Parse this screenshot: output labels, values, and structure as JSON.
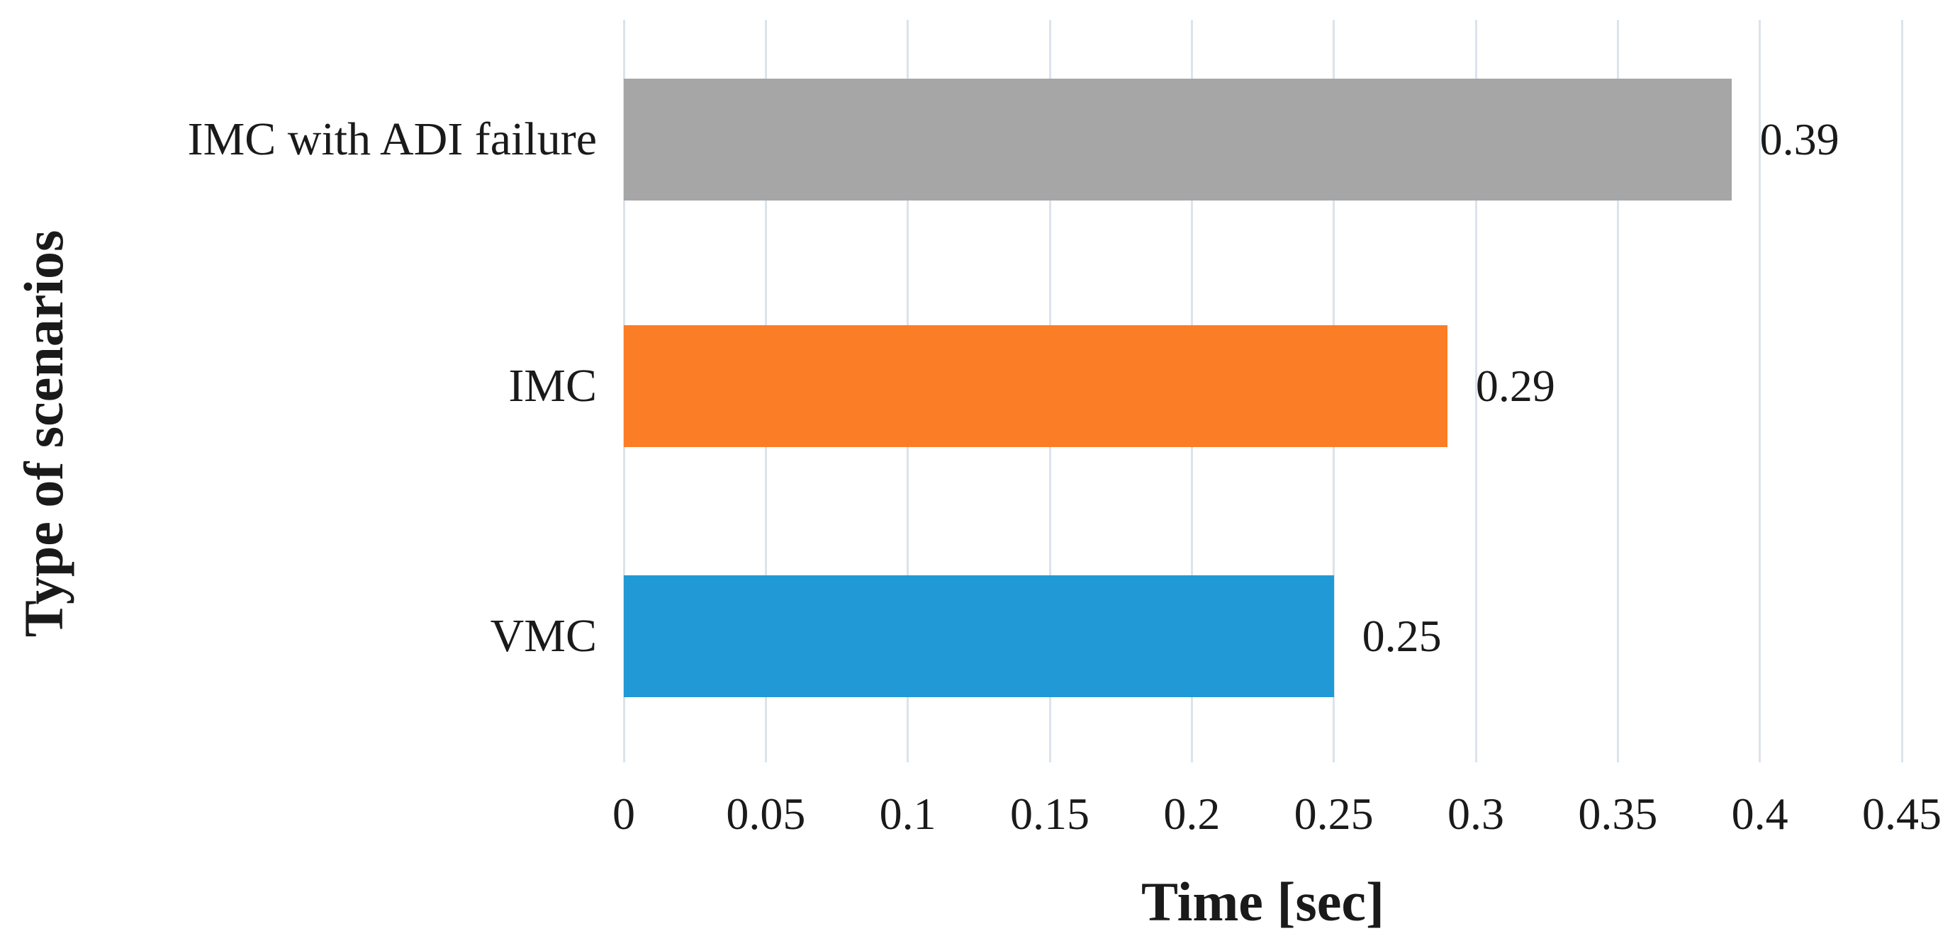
{
  "figure": {
    "background": "#FFFFFF"
  },
  "chart_data": {
    "type": "bar",
    "orientation": "horizontal",
    "title": "",
    "xlabel": "Time [sec]",
    "ylabel": "Type of scenarios",
    "categories": [
      "IMC with ADI failure",
      "IMC",
      "VMC"
    ],
    "values": [
      0.39,
      0.29,
      0.25
    ],
    "data_labels": [
      "0.39",
      "0.29",
      "0.25"
    ],
    "bar_colors": [
      "#A6A6A6",
      "#FB7D26",
      "#2199D6"
    ],
    "xlim": [
      0,
      0.45
    ],
    "xticks": [
      0,
      0.05,
      0.1,
      0.15,
      0.2,
      0.25,
      0.3,
      0.35,
      0.4,
      0.45
    ],
    "xtick_labels": [
      "0",
      "0.05",
      "0.1",
      "0.15",
      "0.2",
      "0.25",
      "0.3",
      "0.35",
      "0.4",
      "0.45"
    ],
    "grid": "vertical-only",
    "gridline_color": "#DBE3EB",
    "text_color": "#1A1A1A",
    "legend": "none"
  }
}
